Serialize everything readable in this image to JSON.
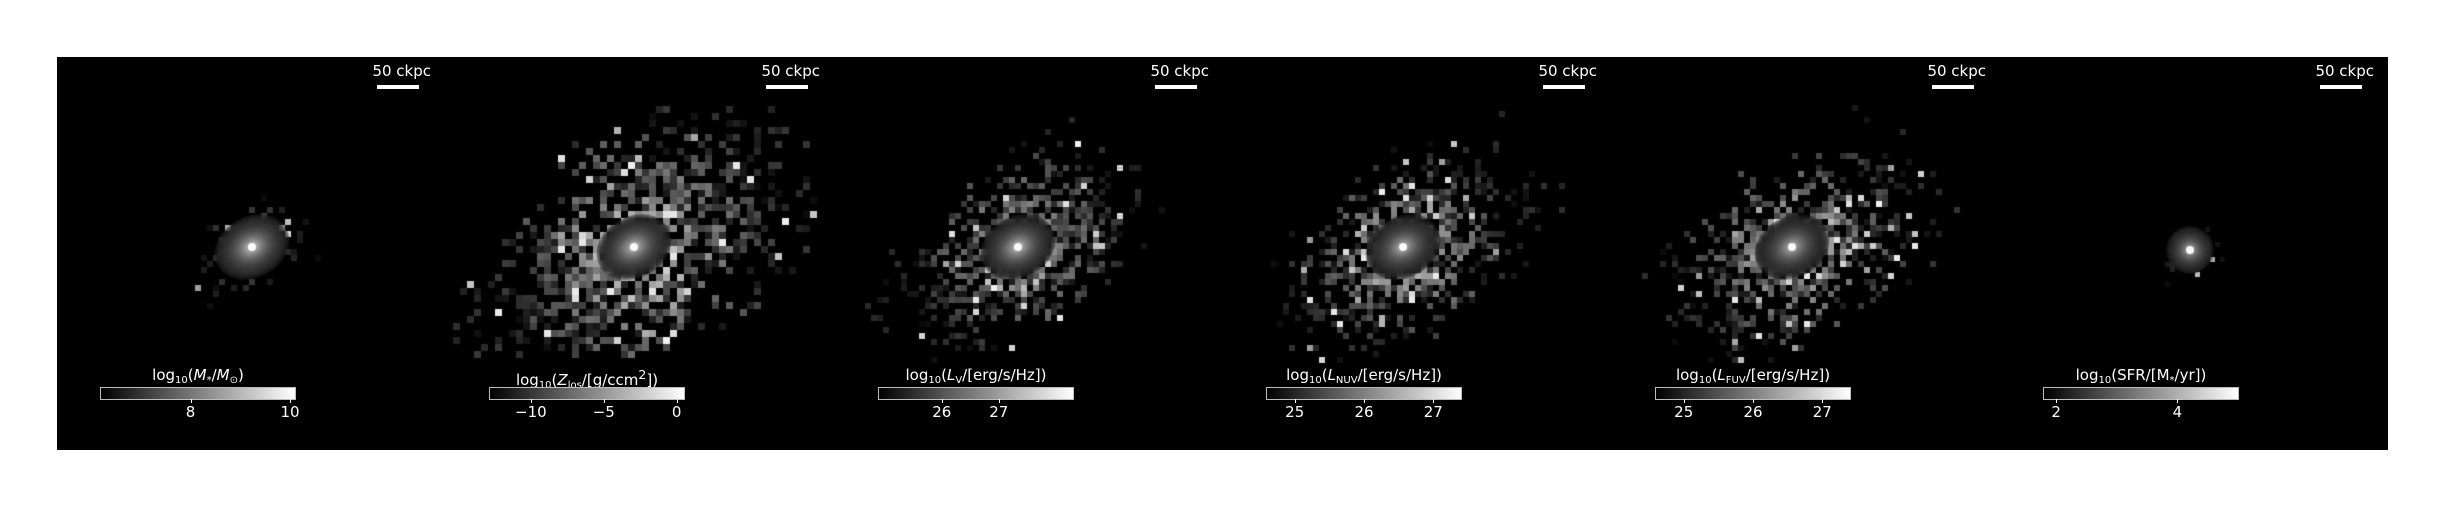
{
  "figure": {
    "description_scale": "50 ckpc",
    "panels": [
      {
        "id": "stellar-mass",
        "scale_label": "50 ckpc",
        "colorbar": {
          "label_html": "log<sub>10</sub>(<span class=\"it\">M</span><sub>*</sub>/<span class=\"it\">M</span><sub>⊙</sub>)",
          "label_text": "log10(M*/M⊙)",
          "range": [
            6.2,
            10.1
          ],
          "ticks": [
            {
              "value": 8,
              "label": "8"
            },
            {
              "value": 10,
              "label": "10"
            }
          ]
        },
        "image": {
          "spread": 0.55,
          "core": 1.0,
          "noise": 0.35,
          "scatter": 70,
          "seed": 11,
          "pix": 6
        }
      },
      {
        "id": "metal-column",
        "scale_label": "50 ckpc",
        "colorbar": {
          "label_html": "log<sub>10</sub>(<span class=\"it\">Z</span><sub>los</sub>/[g/ccm<sup>2</sup>])",
          "label_text": "log10(Zlos/[g/ccm2])",
          "range": [
            -12.8,
            0.5
          ],
          "ticks": [
            {
              "value": -10,
              "label": "−10"
            },
            {
              "value": -5,
              "label": "−5"
            },
            {
              "value": 0,
              "label": "0"
            }
          ]
        },
        "image": {
          "spread": 1.4,
          "core": 0.95,
          "noise": 0.75,
          "scatter": 950,
          "seed": 23,
          "pix": 7
        }
      },
      {
        "id": "luminosity-v",
        "scale_label": "50 ckpc",
        "colorbar": {
          "label_html": "log<sub>10</sub>(<span class=\"it\">L</span><sub>V</sub>/[erg/s/Hz])",
          "label_text": "log10(LV/[erg/s/Hz])",
          "range": [
            24.9,
            28.3
          ],
          "ticks": [
            {
              "value": 26,
              "label": "26"
            },
            {
              "value": 27,
              "label": "27"
            }
          ]
        },
        "image": {
          "spread": 1.1,
          "core": 0.95,
          "noise": 0.6,
          "scatter": 600,
          "seed": 37,
          "pix": 6
        }
      },
      {
        "id": "luminosity-nuv",
        "scale_label": "50 ckpc",
        "colorbar": {
          "label_html": "log<sub>10</sub>(<span class=\"it\">L</span><sub>NUV</sub>/[erg/s/Hz])",
          "label_text": "log10(LNUV/[erg/s/Hz])",
          "range": [
            24.6,
            27.4
          ],
          "ticks": [
            {
              "value": 25,
              "label": "25"
            },
            {
              "value": 26,
              "label": "26"
            },
            {
              "value": 27,
              "label": "27"
            }
          ]
        },
        "image": {
          "spread": 1.1,
          "core": 0.9,
          "noise": 0.65,
          "scatter": 650,
          "seed": 41,
          "pix": 6
        }
      },
      {
        "id": "luminosity-fuv",
        "scale_label": "50 ckpc",
        "colorbar": {
          "label_html": "log<sub>10</sub>(<span class=\"it\">L</span><sub>FUV</sub>/[erg/s/Hz])",
          "label_text": "log10(LFUV/[erg/s/Hz])",
          "range": [
            24.6,
            27.4
          ],
          "ticks": [
            {
              "value": 25,
              "label": "25"
            },
            {
              "value": 26,
              "label": "26"
            },
            {
              "value": 27,
              "label": "27"
            }
          ]
        },
        "image": {
          "spread": 1.15,
          "core": 0.88,
          "noise": 0.7,
          "scatter": 700,
          "seed": 53,
          "pix": 6
        }
      },
      {
        "id": "star-formation-rate",
        "scale_label": "50 ckpc",
        "colorbar": {
          "label_html": "log<sub>10</sub>(SFR/[M<sub>*</sub>/yr])",
          "label_text": "log10(SFR/[M*/yr])",
          "range": [
            1.8,
            5.0
          ],
          "ticks": [
            {
              "value": 2,
              "label": "2"
            },
            {
              "value": 4,
              "label": "4"
            }
          ]
        },
        "image": {
          "spread": 0.3,
          "core": 0.9,
          "noise": 0.3,
          "scatter": 40,
          "seed": 67,
          "pix": 5
        }
      }
    ]
  }
}
